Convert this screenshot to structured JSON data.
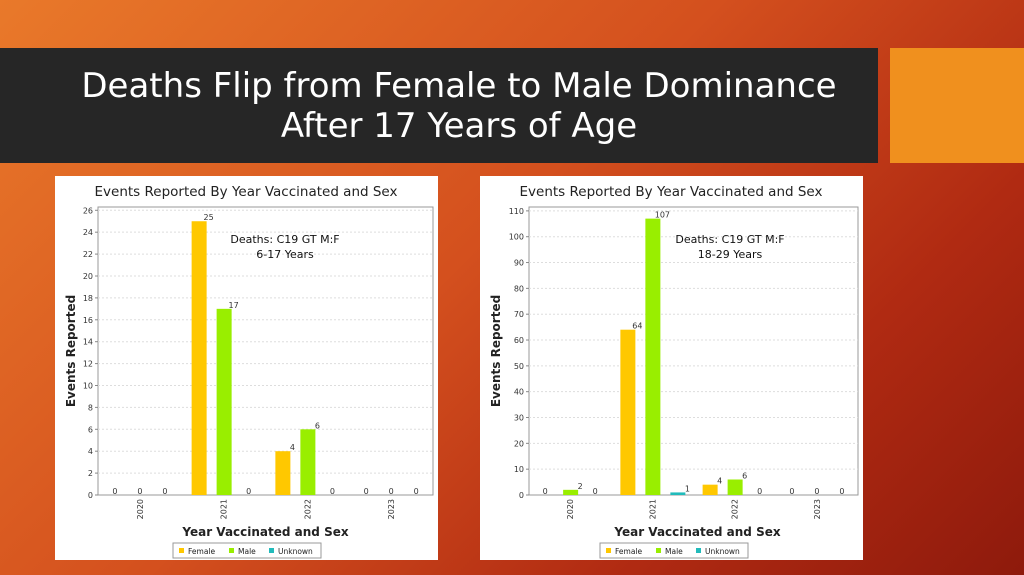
{
  "slide": {
    "title_line1": "Deaths Flip from Female to Male Dominance",
    "title_line2": "After 17 Years of Age"
  },
  "colors": {
    "female": "#ffc800",
    "male": "#99ee00",
    "unknown": "#22bbbb",
    "accent": "#f0901e",
    "titlebar": "#262626"
  },
  "chart_data": [
    {
      "type": "bar",
      "title": "Events Reported By Year Vaccinated and Sex",
      "xlabel": "Year Vaccinated and Sex",
      "ylabel": "Events Reported",
      "annotation_line1": "Deaths: C19 GT M:F",
      "annotation_line2": "6-17 Years",
      "categories": [
        "2020",
        "2021",
        "2022",
        "2023"
      ],
      "series": [
        {
          "name": "Female",
          "values": [
            0,
            25,
            4,
            0
          ]
        },
        {
          "name": "Male",
          "values": [
            0,
            17,
            6,
            0
          ]
        },
        {
          "name": "Unknown",
          "values": [
            0,
            0,
            0,
            0
          ]
        }
      ],
      "ylim": [
        0,
        26.3
      ],
      "yticks": [
        0,
        2,
        4,
        6,
        8,
        10,
        12,
        14,
        16,
        18,
        20,
        22,
        24,
        26
      ],
      "grid": true,
      "legend": "bottom"
    },
    {
      "type": "bar",
      "title": "Events Reported By Year Vaccinated and Sex",
      "xlabel": "Year Vaccinated and Sex",
      "ylabel": "Events Reported",
      "annotation_line1": "Deaths: C19 GT M:F",
      "annotation_line2": "18-29 Years",
      "categories": [
        "2020",
        "2021",
        "2022",
        "2023"
      ],
      "series": [
        {
          "name": "Female",
          "values": [
            0,
            64,
            4,
            0
          ]
        },
        {
          "name": "Male",
          "values": [
            2,
            107,
            6,
            0
          ]
        },
        {
          "name": "Unknown",
          "values": [
            0,
            1,
            0,
            0
          ]
        }
      ],
      "ylim": [
        0,
        111.5
      ],
      "yticks": [
        0,
        10,
        20,
        30,
        40,
        50,
        60,
        70,
        80,
        90,
        100,
        110
      ],
      "grid": true,
      "legend": "bottom"
    }
  ]
}
